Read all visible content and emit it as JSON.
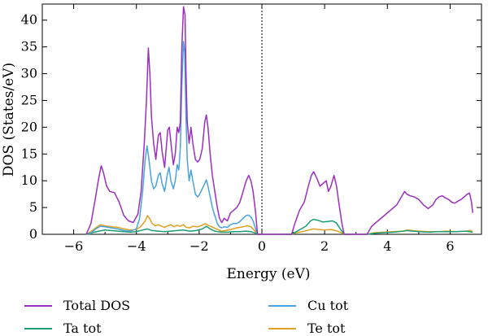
{
  "chart_data": {
    "type": "line",
    "title": "",
    "xlabel": "Energy (eV)",
    "ylabel": "DOS (States/eV)",
    "xlim": [
      -7,
      7
    ],
    "ylim": [
      0,
      43
    ],
    "x_ticks": [
      -6,
      -4,
      -2,
      0,
      2,
      4,
      6
    ],
    "y_ticks": [
      0,
      5,
      10,
      15,
      20,
      25,
      30,
      35,
      40
    ],
    "fermi_level": 0,
    "grid": false,
    "legend_position": "bottom",
    "series": [
      {
        "name": "Total DOS",
        "color": "#9b2fc0",
        "points": [
          [
            -5.6,
            0
          ],
          [
            -5.45,
            2
          ],
          [
            -5.3,
            7
          ],
          [
            -5.2,
            10.5
          ],
          [
            -5.12,
            12.8
          ],
          [
            -5.05,
            11.5
          ],
          [
            -4.95,
            9
          ],
          [
            -4.85,
            8
          ],
          [
            -4.7,
            7.8
          ],
          [
            -4.55,
            6
          ],
          [
            -4.4,
            3.5
          ],
          [
            -4.25,
            2.5
          ],
          [
            -4.1,
            2.2
          ],
          [
            -3.95,
            3.8
          ],
          [
            -3.85,
            8
          ],
          [
            -3.75,
            17
          ],
          [
            -3.68,
            25
          ],
          [
            -3.62,
            34.8
          ],
          [
            -3.57,
            30
          ],
          [
            -3.52,
            22
          ],
          [
            -3.45,
            17
          ],
          [
            -3.38,
            14
          ],
          [
            -3.3,
            18.5
          ],
          [
            -3.24,
            19
          ],
          [
            -3.18,
            15.5
          ],
          [
            -3.1,
            12.5
          ],
          [
            -3.0,
            19.5
          ],
          [
            -2.95,
            20
          ],
          [
            -2.88,
            16
          ],
          [
            -2.82,
            13
          ],
          [
            -2.76,
            15
          ],
          [
            -2.7,
            20
          ],
          [
            -2.65,
            19
          ],
          [
            -2.6,
            21
          ],
          [
            -2.55,
            35
          ],
          [
            -2.5,
            42.5
          ],
          [
            -2.45,
            41
          ],
          [
            -2.42,
            30
          ],
          [
            -2.38,
            21
          ],
          [
            -2.32,
            17
          ],
          [
            -2.26,
            20
          ],
          [
            -2.2,
            17
          ],
          [
            -2.12,
            14
          ],
          [
            -2.05,
            13.5
          ],
          [
            -1.98,
            14
          ],
          [
            -1.9,
            16
          ],
          [
            -1.82,
            21
          ],
          [
            -1.77,
            22.3
          ],
          [
            -1.72,
            20
          ],
          [
            -1.65,
            15
          ],
          [
            -1.58,
            11
          ],
          [
            -1.5,
            8
          ],
          [
            -1.42,
            5
          ],
          [
            -1.35,
            3
          ],
          [
            -1.28,
            2.2
          ],
          [
            -1.2,
            3
          ],
          [
            -1.1,
            2.5
          ],
          [
            -1.0,
            4
          ],
          [
            -0.9,
            4.5
          ],
          [
            -0.8,
            5
          ],
          [
            -0.7,
            6
          ],
          [
            -0.6,
            8
          ],
          [
            -0.5,
            10
          ],
          [
            -0.42,
            11
          ],
          [
            -0.35,
            10
          ],
          [
            -0.28,
            8
          ],
          [
            -0.2,
            4
          ],
          [
            -0.14,
            0
          ],
          [
            0.95,
            0
          ],
          [
            1.05,
            2
          ],
          [
            1.2,
            4.5
          ],
          [
            1.35,
            6
          ],
          [
            1.48,
            9
          ],
          [
            1.58,
            11
          ],
          [
            1.65,
            11.7
          ],
          [
            1.75,
            10.5
          ],
          [
            1.85,
            9
          ],
          [
            1.95,
            9.5
          ],
          [
            2.05,
            10
          ],
          [
            2.12,
            8
          ],
          [
            2.2,
            9
          ],
          [
            2.3,
            11
          ],
          [
            2.38,
            9
          ],
          [
            2.45,
            6
          ],
          [
            2.55,
            2
          ],
          [
            2.62,
            0
          ],
          [
            3.35,
            0
          ],
          [
            3.5,
            1.5
          ],
          [
            3.7,
            2.5
          ],
          [
            3.9,
            3.5
          ],
          [
            4.1,
            4.5
          ],
          [
            4.3,
            5.5
          ],
          [
            4.45,
            7
          ],
          [
            4.55,
            8
          ],
          [
            4.62,
            7.5
          ],
          [
            4.72,
            7.2
          ],
          [
            4.85,
            7
          ],
          [
            5.0,
            6.5
          ],
          [
            5.15,
            5.5
          ],
          [
            5.3,
            4.8
          ],
          [
            5.45,
            5.5
          ],
          [
            5.55,
            6.5
          ],
          [
            5.65,
            7
          ],
          [
            5.75,
            7.2
          ],
          [
            5.85,
            6.8
          ],
          [
            5.95,
            6.5
          ],
          [
            6.05,
            6
          ],
          [
            6.15,
            5.8
          ],
          [
            6.25,
            6.2
          ],
          [
            6.35,
            6.5
          ],
          [
            6.45,
            7
          ],
          [
            6.55,
            7.5
          ],
          [
            6.62,
            7.7
          ],
          [
            6.68,
            6
          ],
          [
            6.72,
            4
          ]
        ]
      },
      {
        "name": "Cu tot",
        "color": "#4aa3dc",
        "points": [
          [
            -5.5,
            0
          ],
          [
            -5.3,
            1
          ],
          [
            -5.15,
            1.5
          ],
          [
            -5.0,
            1.4
          ],
          [
            -4.8,
            1.2
          ],
          [
            -4.6,
            1
          ],
          [
            -4.4,
            0.7
          ],
          [
            -4.2,
            0.6
          ],
          [
            -4.0,
            1
          ],
          [
            -3.9,
            3
          ],
          [
            -3.8,
            8
          ],
          [
            -3.72,
            14
          ],
          [
            -3.66,
            16.5
          ],
          [
            -3.6,
            14
          ],
          [
            -3.52,
            10
          ],
          [
            -3.45,
            8.5
          ],
          [
            -3.38,
            9
          ],
          [
            -3.3,
            11
          ],
          [
            -3.24,
            11.5
          ],
          [
            -3.18,
            9.5
          ],
          [
            -3.1,
            8
          ],
          [
            -3.02,
            11
          ],
          [
            -2.96,
            12.5
          ],
          [
            -2.9,
            10
          ],
          [
            -2.82,
            8.5
          ],
          [
            -2.76,
            10
          ],
          [
            -2.7,
            13
          ],
          [
            -2.65,
            12
          ],
          [
            -2.6,
            16
          ],
          [
            -2.55,
            28
          ],
          [
            -2.5,
            36
          ],
          [
            -2.46,
            34
          ],
          [
            -2.42,
            22
          ],
          [
            -2.38,
            14
          ],
          [
            -2.32,
            10
          ],
          [
            -2.26,
            12
          ],
          [
            -2.2,
            10
          ],
          [
            -2.12,
            7.5
          ],
          [
            -2.05,
            7
          ],
          [
            -1.98,
            7.5
          ],
          [
            -1.9,
            8.5
          ],
          [
            -1.82,
            9.5
          ],
          [
            -1.77,
            10.2
          ],
          [
            -1.72,
            9
          ],
          [
            -1.65,
            7
          ],
          [
            -1.58,
            5
          ],
          [
            -1.5,
            3.5
          ],
          [
            -1.42,
            2
          ],
          [
            -1.35,
            1.4
          ],
          [
            -1.28,
            1.2
          ],
          [
            -1.2,
            1.4
          ],
          [
            -1.1,
            1.3
          ],
          [
            -1.0,
            1.8
          ],
          [
            -0.9,
            2
          ],
          [
            -0.8,
            2
          ],
          [
            -0.7,
            2.4
          ],
          [
            -0.6,
            3
          ],
          [
            -0.5,
            3.5
          ],
          [
            -0.42,
            3.6
          ],
          [
            -0.35,
            3.2
          ],
          [
            -0.28,
            2.5
          ],
          [
            -0.2,
            1
          ],
          [
            -0.14,
            0
          ]
        ]
      },
      {
        "name": "Ta tot",
        "color": "#1e9c74",
        "points": [
          [
            -5.6,
            0
          ],
          [
            -5.4,
            0.3
          ],
          [
            -5.2,
            0.6
          ],
          [
            -5.0,
            0.8
          ],
          [
            -4.8,
            0.7
          ],
          [
            -4.6,
            0.6
          ],
          [
            -4.4,
            0.5
          ],
          [
            -4.2,
            0.4
          ],
          [
            -4.0,
            0.5
          ],
          [
            -3.8,
            0.8
          ],
          [
            -3.65,
            1
          ],
          [
            -3.5,
            0.7
          ],
          [
            -3.3,
            0.6
          ],
          [
            -3.1,
            0.5
          ],
          [
            -2.9,
            0.6
          ],
          [
            -2.7,
            0.7
          ],
          [
            -2.5,
            0.8
          ],
          [
            -2.3,
            0.6
          ],
          [
            -2.1,
            0.7
          ],
          [
            -1.9,
            1
          ],
          [
            -1.77,
            1.5
          ],
          [
            -1.65,
            1
          ],
          [
            -1.5,
            0.6
          ],
          [
            -1.3,
            0.4
          ],
          [
            -1.1,
            0.4
          ],
          [
            -0.9,
            0.5
          ],
          [
            -0.7,
            0.5
          ],
          [
            -0.5,
            0.6
          ],
          [
            -0.35,
            0.5
          ],
          [
            -0.2,
            0.2
          ],
          [
            -0.14,
            0
          ],
          [
            0.95,
            0
          ],
          [
            1.1,
            0.5
          ],
          [
            1.25,
            1
          ],
          [
            1.4,
            1.5
          ],
          [
            1.55,
            2.5
          ],
          [
            1.65,
            2.8
          ],
          [
            1.8,
            2.6
          ],
          [
            1.95,
            2.3
          ],
          [
            2.1,
            2.4
          ],
          [
            2.25,
            2.5
          ],
          [
            2.38,
            2.1
          ],
          [
            2.5,
            1
          ],
          [
            2.62,
            0
          ],
          [
            3.35,
            0
          ],
          [
            3.6,
            0.2
          ],
          [
            3.9,
            0.3
          ],
          [
            4.2,
            0.4
          ],
          [
            4.5,
            0.6
          ],
          [
            4.62,
            0.7
          ],
          [
            4.8,
            0.6
          ],
          [
            5.0,
            0.5
          ],
          [
            5.3,
            0.4
          ],
          [
            5.6,
            0.5
          ],
          [
            5.9,
            0.5
          ],
          [
            6.2,
            0.5
          ],
          [
            6.5,
            0.6
          ],
          [
            6.72,
            0.4
          ]
        ]
      },
      {
        "name": "Te tot",
        "color": "#e0a020",
        "points": [
          [
            -5.6,
            0
          ],
          [
            -5.45,
            0.5
          ],
          [
            -5.3,
            1.2
          ],
          [
            -5.15,
            1.8
          ],
          [
            -5.0,
            1.6
          ],
          [
            -4.8,
            1.4
          ],
          [
            -4.6,
            1.3
          ],
          [
            -4.4,
            1
          ],
          [
            -4.2,
            0.8
          ],
          [
            -4.0,
            0.9
          ],
          [
            -3.85,
            1.5
          ],
          [
            -3.72,
            2.5
          ],
          [
            -3.65,
            3.5
          ],
          [
            -3.58,
            3
          ],
          [
            -3.5,
            2
          ],
          [
            -3.4,
            1.6
          ],
          [
            -3.3,
            1.8
          ],
          [
            -3.2,
            1.5
          ],
          [
            -3.1,
            1.3
          ],
          [
            -3.0,
            1.6
          ],
          [
            -2.9,
            1.8
          ],
          [
            -2.8,
            1.4
          ],
          [
            -2.7,
            1.7
          ],
          [
            -2.6,
            1.5
          ],
          [
            -2.5,
            1.8
          ],
          [
            -2.42,
            1.3
          ],
          [
            -2.3,
            1.2
          ],
          [
            -2.2,
            1.5
          ],
          [
            -2.05,
            1.4
          ],
          [
            -1.9,
            1.7
          ],
          [
            -1.8,
            2
          ],
          [
            -1.72,
            1.7
          ],
          [
            -1.6,
            1.4
          ],
          [
            -1.45,
            1
          ],
          [
            -1.3,
            0.6
          ],
          [
            -1.15,
            0.7
          ],
          [
            -1.0,
            0.9
          ],
          [
            -0.8,
            1.2
          ],
          [
            -0.6,
            1.4
          ],
          [
            -0.45,
            1.6
          ],
          [
            -0.35,
            1.4
          ],
          [
            -0.25,
            0.8
          ],
          [
            -0.14,
            0
          ],
          [
            0.95,
            0
          ],
          [
            1.1,
            0.3
          ],
          [
            1.3,
            0.5
          ],
          [
            1.5,
            0.8
          ],
          [
            1.65,
            1
          ],
          [
            1.8,
            0.9
          ],
          [
            2.0,
            0.8
          ],
          [
            2.2,
            0.9
          ],
          [
            2.35,
            0.7
          ],
          [
            2.5,
            0.4
          ],
          [
            2.62,
            0
          ],
          [
            3.35,
            0
          ],
          [
            3.6,
            0.3
          ],
          [
            3.9,
            0.4
          ],
          [
            4.2,
            0.5
          ],
          [
            4.5,
            0.6
          ],
          [
            4.65,
            0.8
          ],
          [
            4.8,
            0.7
          ],
          [
            5.0,
            0.6
          ],
          [
            5.3,
            0.5
          ],
          [
            5.6,
            0.5
          ],
          [
            5.9,
            0.6
          ],
          [
            6.2,
            0.5
          ],
          [
            6.5,
            0.6
          ],
          [
            6.65,
            0.7
          ],
          [
            6.72,
            0.5
          ]
        ]
      }
    ]
  }
}
